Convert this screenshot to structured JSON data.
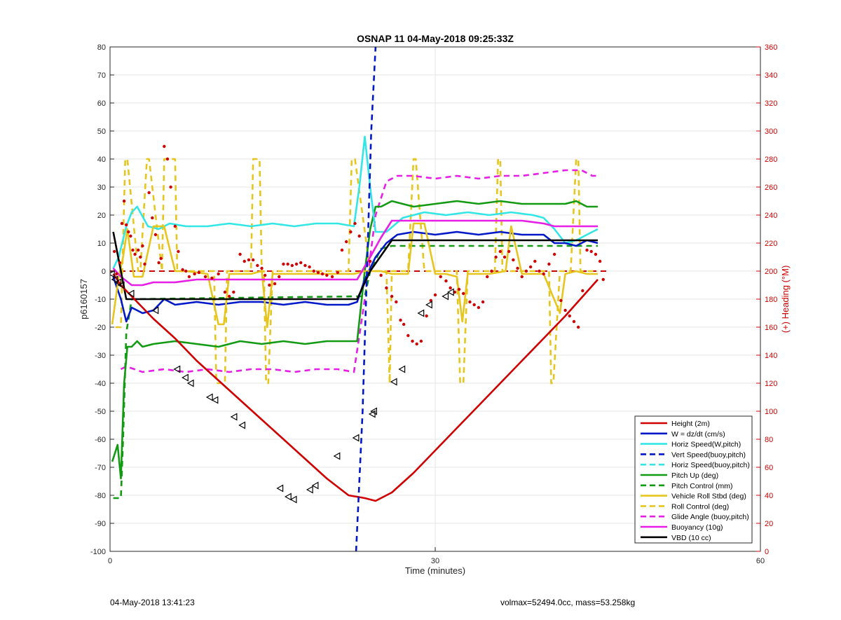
{
  "chart_data": {
    "type": "line",
    "title": "OSNAP 11 04-May-2018 09:25:33Z",
    "xlabel": "Time (minutes)",
    "ylabel": "p6160157",
    "y2label": "(+) Heading (°M)",
    "xlim": [
      0,
      60
    ],
    "ylim": [
      -100,
      80
    ],
    "y2lim": [
      0,
      360
    ],
    "xticks": [
      0,
      30,
      60
    ],
    "yticks": [
      -100,
      -90,
      -80,
      -70,
      -60,
      -50,
      -40,
      -30,
      -20,
      -10,
      0,
      10,
      20,
      30,
      40,
      50,
      60,
      70,
      80
    ],
    "y2ticks": [
      0,
      20,
      40,
      60,
      80,
      100,
      120,
      140,
      160,
      180,
      200,
      220,
      240,
      260,
      280,
      300,
      320,
      340,
      360
    ],
    "grid": true,
    "legend_position": "bottom-right",
    "series": [
      {
        "name": "Height (2m)",
        "color": "#d00000",
        "style": "solid",
        "x": [
          0.3,
          1.0,
          2.0,
          4.0,
          6.0,
          8.0,
          10.0,
          12.0,
          14.0,
          16.0,
          18.0,
          20.0,
          22.0,
          23.5,
          24.5,
          26.0,
          28.0,
          30.0,
          32.0,
          34.0,
          36.0,
          38.0,
          40.0,
          42.0,
          45.0
        ],
        "y": [
          -1,
          -5,
          -9,
          -17,
          -24,
          -32,
          -39,
          -46,
          -53,
          -60,
          -67,
          -74,
          -80,
          -81,
          -82,
          -79,
          -72,
          -64,
          -56,
          -48,
          -40,
          -32,
          -24,
          -16,
          -3
        ]
      },
      {
        "name": "W = dz/dt (cm/s)",
        "color": "#0018c8",
        "style": "solid",
        "x": [
          0.3,
          1.0,
          1.5,
          2.0,
          3.0,
          4.0,
          5.0,
          6.0,
          8.0,
          10.0,
          12.0,
          14.0,
          16.0,
          18.0,
          20.0,
          22.0,
          22.8,
          23.5,
          24.5,
          25.5,
          26.5,
          28.0,
          30.0,
          32.0,
          34.0,
          36.0,
          38.0,
          40.0,
          41.0,
          42.0,
          43.0,
          44.0,
          45.0
        ],
        "y": [
          -2,
          -10,
          -18,
          -13,
          -15,
          -14,
          -10,
          -12,
          -11,
          -12,
          -11,
          -11,
          -12,
          -11,
          -12,
          -12,
          -11,
          -3,
          5,
          10,
          13,
          14,
          13,
          14,
          13,
          14,
          13,
          13,
          10,
          10,
          9,
          11,
          10
        ]
      },
      {
        "name": "Horiz Speed(W,pitch)",
        "color": "#33e6e6",
        "style": "solid",
        "x": [
          0.3,
          0.8,
          1.5,
          2.0,
          2.5,
          3.5,
          4.5,
          5.5,
          7.0,
          9.0,
          11.0,
          13.0,
          15.0,
          17.0,
          19.0,
          21.0,
          22.5,
          23.0,
          23.5,
          24.0,
          24.5,
          25.5,
          27.0,
          29.0,
          31.0,
          33.0,
          35.0,
          37.0,
          39.0,
          40.0,
          41.0,
          42.0,
          43.0,
          44.0,
          45.0
        ],
        "y": [
          1,
          5,
          16,
          21,
          23,
          16,
          15,
          17,
          16,
          16,
          17,
          16,
          17,
          16,
          17,
          17,
          16,
          30,
          48,
          30,
          14,
          14,
          19,
          21,
          20,
          21,
          20,
          21,
          20,
          19,
          15,
          10,
          11,
          13,
          15
        ]
      },
      {
        "name": "Vert Speed(buoy,pitch)",
        "color": "#0018c8",
        "style": "dashed",
        "x": [
          22.7,
          23.3,
          23.7,
          24.1,
          24.5
        ],
        "y": [
          -100,
          -50,
          0,
          50,
          80
        ]
      },
      {
        "name": "Horiz Speed(buoy,pitch)",
        "color": "#33e6e6",
        "style": "dashed",
        "x": [],
        "y": []
      },
      {
        "name": "Pitch Up (deg)",
        "color": "#139a13",
        "style": "solid",
        "x": [
          0.2,
          0.7,
          1.0,
          1.3,
          1.6,
          2.0,
          2.5,
          3.0,
          4.0,
          6.0,
          8.0,
          10.0,
          12.0,
          14.0,
          16.0,
          18.0,
          20.0,
          22.0,
          22.8,
          23.5,
          24.0,
          24.5,
          25.0,
          26.0,
          28.0,
          30.0,
          32.0,
          34.0,
          36.0,
          38.0,
          40.0,
          42.0,
          43.0,
          44.0,
          45.0
        ],
        "y": [
          -68,
          -62,
          -74,
          -40,
          -27,
          -27,
          -25,
          -27,
          -26,
          -25,
          -26,
          -27,
          -25,
          -26,
          -25,
          -26,
          -25,
          -25,
          -25,
          0,
          15,
          23,
          23,
          25,
          23,
          24,
          25,
          24,
          25,
          24,
          24,
          24,
          25,
          23,
          23
        ]
      },
      {
        "name": "Pitch Control (mm)",
        "color": "#139a13",
        "style": "dashed",
        "x": [
          0.3,
          1.0,
          1.2,
          1.5,
          2.0,
          22.8,
          23.5,
          24.0,
          25.0,
          26.0,
          45.0
        ],
        "y": [
          -81,
          -81,
          -60,
          -22,
          -10,
          -9,
          -9,
          0,
          8,
          9,
          9
        ]
      },
      {
        "name": "Vehicle Roll Stbd (deg)",
        "color": "#e6c61e",
        "style": "solid",
        "x": [
          0.2,
          0.8,
          1.2,
          1.6,
          2.2,
          3.0,
          4.0,
          5.0,
          6.0,
          7.0,
          9.0,
          10.0,
          10.5,
          11.0,
          13.0,
          14.0,
          14.5,
          15.0,
          17.0,
          19.0,
          21.0,
          22.0,
          22.5,
          23.5,
          25.0,
          26.0,
          27.5,
          28.0,
          29.0,
          30.0,
          31.0,
          32.0,
          32.5,
          33.0,
          35.0,
          36.5,
          37.0,
          38.0,
          40.0,
          41.5,
          42.0,
          43.0,
          44.0,
          45.0
        ],
        "y": [
          -19,
          -2,
          5,
          15,
          -2,
          -2,
          16,
          16,
          0,
          0,
          -1,
          -19,
          -19,
          -1,
          -1,
          0,
          -20,
          -1,
          -1,
          -1,
          -1,
          -1,
          -1,
          0,
          0,
          -1,
          -1,
          17,
          17,
          -1,
          -1,
          -2,
          -18,
          -1,
          -1,
          0,
          16,
          -1,
          -1,
          -15,
          -1,
          0,
          -1,
          -1
        ]
      },
      {
        "name": "Roll Control (deg)",
        "color": "#e6c61e",
        "style": "dashed",
        "x": [
          0.5,
          1.0,
          1.4,
          1.6,
          2.6,
          2.8,
          3.4,
          3.6,
          4.8,
          5.0,
          6.0,
          6.2,
          9.6,
          9.8,
          10.6,
          10.8,
          13.0,
          13.2,
          13.8,
          14.0,
          14.2,
          14.4,
          14.6,
          15.0,
          16.0,
          22.0,
          22.3,
          22.6,
          24.0,
          25.5,
          25.8,
          26.0,
          27.0,
          27.5,
          28.0,
          28.2,
          29.0,
          30.0,
          32.0,
          32.3,
          32.6,
          33.0,
          35.5,
          35.8,
          36.0,
          36.2,
          40.5,
          40.7,
          40.9,
          41.5,
          42.5,
          43.0,
          43.2,
          43.4,
          44.0,
          45.0
        ],
        "y": [
          -20,
          -20,
          40,
          40,
          0,
          0,
          40,
          40,
          0,
          40,
          40,
          0,
          0,
          -40,
          -40,
          0,
          0,
          40,
          40,
          0,
          0,
          -40,
          -40,
          0,
          0,
          0,
          40,
          40,
          0,
          0,
          -40,
          0,
          0,
          0,
          40,
          40,
          0,
          0,
          0,
          -40,
          -40,
          0,
          0,
          40,
          40,
          0,
          0,
          -40,
          -40,
          0,
          0,
          40,
          40,
          0,
          0,
          0
        ]
      },
      {
        "name": "Glide Angle (buoy,pitch)",
        "color": "#e61ee6",
        "style": "dashed",
        "x": [
          1.0,
          1.5,
          3.0,
          5.0,
          7.0,
          9.0,
          11.0,
          13.0,
          15.0,
          17.0,
          19.0,
          21.0,
          22.5,
          23.5,
          24.5,
          25.5,
          26.5,
          28.0,
          30.0,
          32.0,
          34.0,
          36.0,
          38.0,
          40.0,
          42.0,
          43.5,
          44.5,
          45.0
        ],
        "y": [
          -35,
          -34,
          -36,
          -35,
          -36,
          -35,
          -36,
          -35,
          -35,
          -36,
          -35,
          -35,
          -36,
          -10,
          20,
          32,
          34,
          34,
          33,
          34,
          33,
          34,
          34,
          35,
          36,
          36,
          34,
          34
        ]
      },
      {
        "name": "Buoyancy (10g)",
        "color": "#e61ee6",
        "style": "solid",
        "x": [
          0.3,
          1.0,
          2.0,
          3.0,
          4.0,
          6.0,
          8.0,
          10.0,
          12.0,
          14.0,
          16.0,
          18.0,
          20.0,
          22.0,
          22.8,
          24.0,
          25.0,
          26.0,
          28.0,
          30.0,
          34.0,
          38.0,
          40.0,
          41.0,
          42.0,
          45.0
        ],
        "y": [
          1,
          -2,
          -5,
          -5,
          -4,
          -4,
          -3,
          -3,
          -3,
          -3,
          -3,
          -3,
          -3,
          -3,
          -3,
          5,
          12,
          18,
          18,
          18,
          18,
          18,
          17,
          16,
          16,
          16
        ]
      },
      {
        "name": "VBD (10 cc)",
        "color": "#000000",
        "style": "solid",
        "x": [
          0.3,
          1.0,
          1.5,
          2.0,
          10.0,
          18.0,
          22.8,
          24.0,
          26.0,
          30.0,
          40.0,
          45.0
        ],
        "y": [
          14,
          0,
          -10,
          -10,
          -10,
          -10,
          -10,
          0,
          11,
          11,
          11,
          11
        ]
      }
    ],
    "heading_points_deg": [
      [
        0.4,
        214
      ],
      [
        0.6,
        198
      ],
      [
        0.9,
        206
      ],
      [
        1.1,
        234
      ],
      [
        1.3,
        250
      ],
      [
        1.5,
        233
      ],
      [
        1.7,
        228
      ],
      [
        1.9,
        225
      ],
      [
        2.1,
        215
      ],
      [
        2.3,
        212
      ],
      [
        2.6,
        215
      ],
      [
        2.8,
        210
      ],
      [
        3.0,
        218
      ],
      [
        3.2,
        205
      ],
      [
        3.6,
        256
      ],
      [
        3.9,
        238
      ],
      [
        4.2,
        226
      ],
      [
        4.5,
        206
      ],
      [
        4.7,
        209
      ],
      [
        5.0,
        289
      ],
      [
        5.3,
        280
      ],
      [
        5.6,
        260
      ],
      [
        6.0,
        232
      ],
      [
        6.3,
        214
      ],
      [
        6.7,
        201
      ],
      [
        7.0,
        200
      ],
      [
        7.3,
        196
      ],
      [
        7.8,
        198
      ],
      [
        8.2,
        199
      ],
      [
        8.8,
        196
      ],
      [
        9.4,
        195
      ],
      [
        10.0,
        198
      ],
      [
        10.6,
        185
      ],
      [
        11.0,
        182
      ],
      [
        11.4,
        185
      ],
      [
        12.0,
        212
      ],
      [
        12.4,
        207
      ],
      [
        12.8,
        208
      ],
      [
        13.2,
        208
      ],
      [
        13.6,
        204
      ],
      [
        14.0,
        202
      ],
      [
        14.3,
        197
      ],
      [
        14.7,
        190
      ],
      [
        15.2,
        191
      ],
      [
        15.6,
        196
      ],
      [
        16.0,
        205
      ],
      [
        16.4,
        205
      ],
      [
        16.8,
        204
      ],
      [
        17.2,
        205
      ],
      [
        17.6,
        206
      ],
      [
        18.0,
        204
      ],
      [
        18.4,
        203
      ],
      [
        18.8,
        200
      ],
      [
        19.2,
        199
      ],
      [
        19.6,
        198
      ],
      [
        20.0,
        197
      ],
      [
        20.5,
        196
      ],
      [
        21.0,
        199
      ],
      [
        21.4,
        215
      ],
      [
        21.8,
        221
      ],
      [
        22.2,
        228
      ],
      [
        22.6,
        234
      ],
      [
        23.0,
        225
      ],
      [
        24.0,
        207
      ],
      [
        25.0,
        197
      ],
      [
        25.5,
        188
      ],
      [
        26.0,
        182
      ],
      [
        26.4,
        178
      ],
      [
        26.8,
        165
      ],
      [
        27.1,
        162
      ],
      [
        27.5,
        154
      ],
      [
        27.9,
        150
      ],
      [
        28.3,
        148
      ],
      [
        28.7,
        150
      ],
      [
        29.2,
        168
      ],
      [
        29.6,
        179
      ],
      [
        30.0,
        183
      ],
      [
        30.5,
        196
      ],
      [
        31.0,
        193
      ],
      [
        31.4,
        188
      ],
      [
        31.8,
        185
      ],
      [
        32.2,
        187
      ],
      [
        32.6,
        184
      ],
      [
        33.2,
        178
      ],
      [
        33.6,
        176
      ],
      [
        34.0,
        174
      ],
      [
        34.4,
        178
      ],
      [
        34.8,
        196
      ],
      [
        35.2,
        200
      ],
      [
        35.6,
        210
      ],
      [
        36.0,
        214
      ],
      [
        36.4,
        210
      ],
      [
        36.8,
        214
      ],
      [
        37.2,
        208
      ],
      [
        37.6,
        202
      ],
      [
        38.0,
        196
      ],
      [
        38.4,
        200
      ],
      [
        38.8,
        203
      ],
      [
        39.2,
        207
      ],
      [
        39.6,
        200
      ],
      [
        40.0,
        198
      ],
      [
        40.5,
        205
      ],
      [
        41.0,
        212
      ],
      [
        41.6,
        179
      ],
      [
        42.0,
        172
      ],
      [
        42.4,
        168
      ],
      [
        42.8,
        164
      ],
      [
        43.2,
        160
      ],
      [
        43.6,
        186
      ],
      [
        44.0,
        215
      ],
      [
        44.4,
        214
      ],
      [
        44.8,
        212
      ],
      [
        45.2,
        207
      ],
      [
        45.5,
        194
      ]
    ],
    "zero_reference": {
      "name": "0 (heading 200)",
      "color": "#d00000",
      "style": "dashed",
      "y": 0
    },
    "triangle_markers": [
      [
        0.4,
        -1
      ],
      [
        1.0,
        -3
      ],
      [
        1.6,
        -4
      ],
      [
        2.2,
        -5
      ],
      [
        4.0,
        -8
      ],
      [
        8.5,
        -14
      ],
      [
        12.5,
        -35
      ],
      [
        14.0,
        -38
      ],
      [
        15.0,
        -40
      ],
      [
        18.5,
        -45
      ],
      [
        19.5,
        -46
      ],
      [
        23.0,
        -52
      ],
      [
        24.5,
        -55
      ],
      [
        31.5,
        -77.5
      ],
      [
        33.0,
        -80.5
      ],
      [
        34.0,
        -81.5
      ],
      [
        37.0,
        -78
      ],
      [
        38.0,
        -76.5
      ],
      [
        42.0,
        -66
      ],
      [
        45.5,
        -59.5
      ],
      [
        48.5,
        -51
      ],
      [
        48.8,
        -50
      ],
      [
        52.5,
        -39.5
      ],
      [
        54.0,
        -35
      ],
      [
        57.5,
        -15
      ],
      [
        59.0,
        -12
      ],
      [
        62.0,
        -9
      ],
      [
        63.0,
        -7.5
      ]
    ]
  },
  "footer": {
    "timestamp": "04-May-2018 13:41:23",
    "summary": "volmax=52494.0cc, mass=53.258kg"
  }
}
